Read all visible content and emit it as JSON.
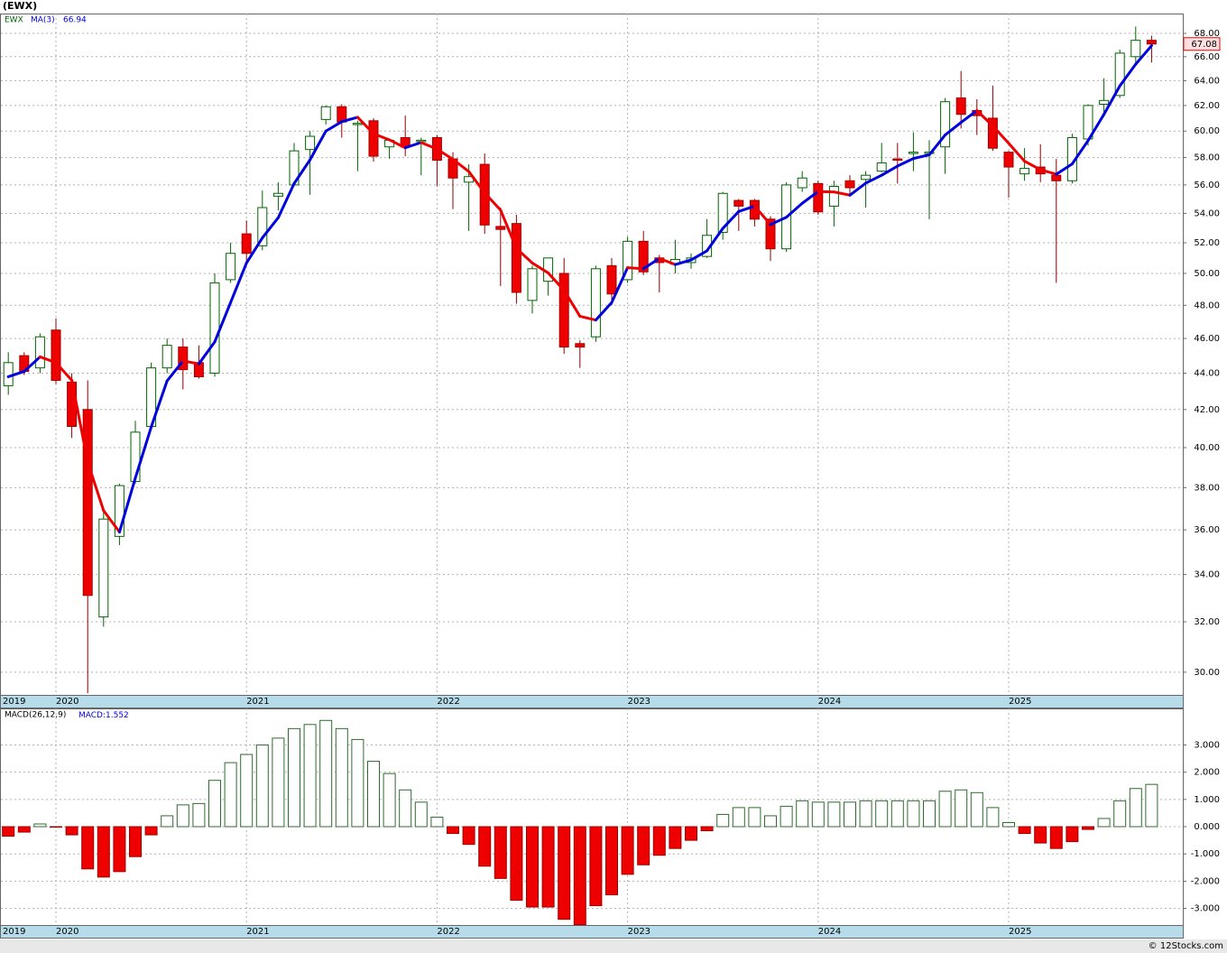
{
  "chart_data": [
    {
      "type": "candlestick",
      "title": "(EWX)",
      "symbol": "EWX",
      "first_label": "2019",
      "categories": [
        null,
        null,
        null,
        "2020",
        null,
        null,
        null,
        null,
        null,
        null,
        null,
        null,
        null,
        null,
        null,
        "2021",
        null,
        null,
        null,
        null,
        null,
        null,
        null,
        null,
        null,
        null,
        null,
        "2022",
        null,
        null,
        null,
        null,
        null,
        null,
        null,
        null,
        null,
        null,
        null,
        "2023",
        null,
        null,
        null,
        null,
        null,
        null,
        null,
        null,
        null,
        null,
        null,
        "2024",
        null,
        null,
        null,
        null,
        null,
        null,
        null,
        null,
        null,
        null,
        null,
        "2025",
        null,
        null,
        null,
        null,
        null,
        null,
        null,
        null,
        null
      ],
      "open": [
        43.3,
        45,
        44.3,
        46.5,
        43.5,
        42,
        32.2,
        35.7,
        38.3,
        41.1,
        44.3,
        45.5,
        44.6,
        44,
        49.6,
        52.6,
        51.8,
        55.2,
        56,
        58.6,
        60.9,
        61.9,
        60.5,
        60.8,
        58.8,
        59.5,
        59.2,
        59.5,
        57.9,
        56.2,
        57.5,
        53.1,
        53.3,
        48.3,
        49.5,
        50,
        45.7,
        46.1,
        50.5,
        49.6,
        52.1,
        51,
        50.6,
        50.7,
        51.1,
        52.7,
        54.9,
        54.9,
        53.6,
        51.6,
        55.8,
        56.1,
        54.5,
        56.3,
        56.4,
        57,
        57.9,
        58.3,
        58.3,
        58.8,
        62.6,
        61.6,
        61,
        58.4,
        56.8,
        57.3,
        56.7,
        56.3,
        59.4,
        62.1,
        62.8,
        66,
        67.4
      ],
      "high": [
        45.2,
        45.2,
        46.3,
        47.2,
        44,
        43.6,
        37,
        38.2,
        41.4,
        44.6,
        46,
        46,
        45.6,
        50,
        52,
        53.5,
        55.6,
        56.2,
        59.1,
        60,
        62,
        62.1,
        60.8,
        61,
        59.4,
        61.2,
        59.5,
        59.7,
        58.4,
        57.5,
        58.3,
        54.4,
        53.9,
        50.5,
        51,
        51,
        45.9,
        50.5,
        51,
        52.4,
        52.8,
        51.2,
        52.2,
        51.3,
        53.6,
        55.5,
        55,
        55,
        53.8,
        56.2,
        57,
        56.3,
        56.3,
        56.7,
        57,
        59.1,
        59.1,
        59.9,
        59.3,
        62.6,
        64.8,
        62.5,
        63.6,
        58.5,
        58.7,
        59,
        57.9,
        59.8,
        62.1,
        64.2,
        66.6,
        68.6,
        67.8
      ],
      "low": [
        42.8,
        43.9,
        44,
        43.4,
        40.5,
        29.2,
        31.8,
        35.3,
        38.2,
        41,
        44,
        43.1,
        43.7,
        43.8,
        49.4,
        50.7,
        51.5,
        54.2,
        55.9,
        55.3,
        60.5,
        59.5,
        57,
        57.7,
        57.9,
        58.1,
        56.7,
        55.9,
        54.3,
        52.8,
        52.6,
        49.2,
        48.1,
        47.5,
        48.6,
        45.1,
        44.3,
        45.8,
        48,
        49.4,
        49.9,
        48.8,
        50,
        50.3,
        51,
        52.2,
        52.8,
        53.1,
        50.8,
        51.4,
        55.5,
        53.9,
        53.1,
        55.3,
        54.4,
        56.9,
        56.1,
        57,
        53.6,
        56.8,
        60.2,
        59.7,
        58.5,
        55.1,
        56.3,
        56.2,
        49.4,
        56.1,
        58.9,
        61.1,
        62.6,
        65.5,
        65.5
      ],
      "close": [
        44.6,
        44.1,
        46.1,
        43.6,
        41.1,
        33.1,
        36.5,
        38.1,
        40.8,
        44.3,
        45.6,
        44.2,
        43.8,
        49.4,
        51.3,
        51.3,
        54.4,
        55.4,
        58.5,
        59.6,
        61.9,
        60.7,
        60.6,
        58.1,
        59.3,
        58.8,
        59.3,
        57.8,
        56.5,
        56.6,
        53.2,
        52.9,
        48.8,
        50.3,
        51.0,
        45.5,
        45.5,
        50.3,
        48.7,
        52.1,
        50.1,
        50.7,
        50.9,
        51.0,
        52.5,
        55.4,
        54.5,
        53.6,
        51.6,
        56.0,
        56.5,
        54.1,
        55.9,
        55.8,
        56.7,
        57.6,
        57.8,
        58.4,
        58.4,
        62.3,
        61.3,
        61.2,
        58.7,
        57.3,
        57.2,
        56.8,
        56.3,
        59.5,
        62.0,
        62.4,
        66.3,
        67.4,
        67.08
      ],
      "up_color": "#006400",
      "down_color": "#ee0000",
      "ma": {
        "name": "MA(3)",
        "up_color": "#0000dd",
        "down_color": "#ee0000",
        "values": [
          43.8,
          44.1,
          44.93,
          44.6,
          43.6,
          39.27,
          36.9,
          35.9,
          38.47,
          41.07,
          43.57,
          44.7,
          44.53,
          45.8,
          48.17,
          50.67,
          52.33,
          53.7,
          56.1,
          57.83,
          60,
          60.73,
          61.07,
          59.8,
          59.33,
          58.73,
          59.13,
          58.63,
          57.87,
          56.97,
          55.43,
          54.23,
          51.63,
          50.67,
          50.03,
          48.93,
          47.33,
          47.1,
          48.17,
          50.37,
          50.3,
          50.97,
          50.57,
          50.87,
          51.47,
          52.97,
          54.13,
          54.5,
          53.23,
          53.73,
          54.7,
          55.53,
          55.5,
          55.27,
          56.13,
          56.7,
          57.37,
          57.93,
          58.2,
          59.7,
          60.67,
          61.6,
          60.4,
          59.07,
          57.73,
          57.1,
          56.77,
          57.53,
          59.27,
          61.3,
          63.57,
          65.37,
          66.94
        ]
      },
      "log_scale": true,
      "grid": true,
      "ylim": [
        29.14,
        69.75
      ],
      "yticks": [
        {
          "value": 30,
          "label": "30.00"
        },
        {
          "value": 32,
          "label": "32.00"
        },
        {
          "value": 34,
          "label": "34.00"
        },
        {
          "value": 36,
          "label": "36.00"
        },
        {
          "value": 38,
          "label": "38.00"
        },
        {
          "value": 40,
          "label": "40.00"
        },
        {
          "value": 42,
          "label": "42.00"
        },
        {
          "value": 44,
          "label": "44.00"
        },
        {
          "value": 46,
          "label": "46.00"
        },
        {
          "value": 48,
          "label": "48.00"
        },
        {
          "value": 50,
          "label": "50.00"
        },
        {
          "value": 52,
          "label": "52.00"
        },
        {
          "value": 54,
          "label": "54.00"
        },
        {
          "value": 56,
          "label": "56.00"
        },
        {
          "value": 58,
          "label": "58.00"
        },
        {
          "value": 60,
          "label": "60.00"
        },
        {
          "value": 62,
          "label": "62.00"
        },
        {
          "value": 64,
          "label": "64.00"
        },
        {
          "value": 66,
          "label": "66.00"
        },
        {
          "value": 68,
          "label": "68.00"
        }
      ]
    },
    {
      "type": "bar",
      "title": "MACD(26,12,9)",
      "value_prefix": "MACD:",
      "first_label": "2019",
      "categories": [
        null,
        null,
        null,
        "2020",
        null,
        null,
        null,
        null,
        null,
        null,
        null,
        null,
        null,
        null,
        null,
        "2021",
        null,
        null,
        null,
        null,
        null,
        null,
        null,
        null,
        null,
        null,
        null,
        "2022",
        null,
        null,
        null,
        null,
        null,
        null,
        null,
        null,
        null,
        null,
        null,
        "2023",
        null,
        null,
        null,
        null,
        null,
        null,
        null,
        null,
        null,
        null,
        null,
        "2024",
        null,
        null,
        null,
        null,
        null,
        null,
        null,
        null,
        null,
        null,
        null,
        "2025",
        null,
        null,
        null,
        null,
        null,
        null,
        null,
        null,
        null
      ],
      "values": [
        -0.35,
        -0.2,
        0.1,
        -0.02,
        -0.3,
        -1.55,
        -1.85,
        -1.65,
        -1.1,
        -0.3,
        0.4,
        0.8,
        0.85,
        1.7,
        2.35,
        2.65,
        3.0,
        3.25,
        3.6,
        3.75,
        3.9,
        3.6,
        3.2,
        2.4,
        1.95,
        1.35,
        0.9,
        0.35,
        -0.25,
        -0.65,
        -1.45,
        -1.9,
        -2.7,
        -2.95,
        -2.95,
        -3.4,
        -3.6,
        -2.9,
        -2.5,
        -1.75,
        -1.4,
        -1.05,
        -0.8,
        -0.5,
        -0.15,
        0.45,
        0.7,
        0.7,
        0.4,
        0.75,
        0.95,
        0.9,
        0.9,
        0.9,
        0.95,
        0.95,
        0.95,
        0.95,
        0.95,
        1.3,
        1.35,
        1.25,
        0.7,
        0.15,
        -0.25,
        -0.6,
        -0.8,
        -0.55,
        -0.1,
        0.3,
        0.95,
        1.4,
        1.552
      ],
      "up_color": "#2e6b2e",
      "down_color": "#ee0000",
      "grid": true,
      "ylim": [
        -3.61,
        4.34
      ],
      "yticks": [
        {
          "value": -3,
          "label": "-3.000"
        },
        {
          "value": -2,
          "label": "-2.000"
        },
        {
          "value": -1,
          "label": "-1.000"
        },
        {
          "value": 0,
          "label": "0.000"
        },
        {
          "value": 1,
          "label": "1.000"
        },
        {
          "value": 2,
          "label": "2.000"
        },
        {
          "value": 3,
          "label": "3.000"
        }
      ]
    }
  ],
  "footer": "© 12Stocks.com"
}
